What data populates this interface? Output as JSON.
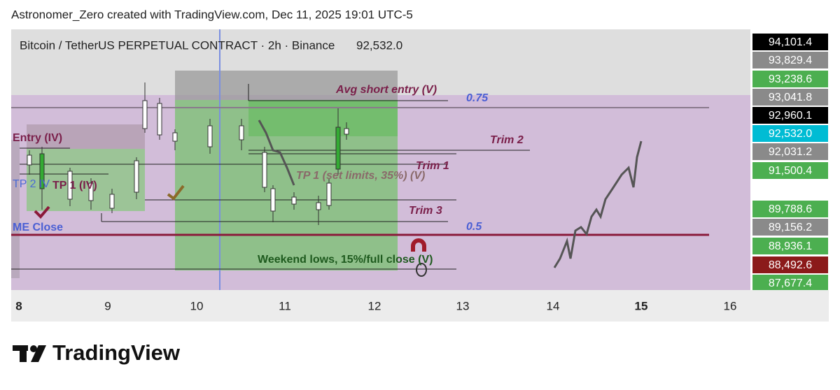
{
  "header": {
    "credit": "Astronomer_Zero created with TradingView.com, Dec 11, 2025 19:01 UTC-5"
  },
  "chart": {
    "symbol": "Bitcoin / TetherUS PERPETUAL CONTRACT · 2h · Binance",
    "last_price": "92,532.0",
    "annotations": {
      "avg_short_entry": "Avg short entry (V)",
      "fib_075": "0.75",
      "trim2": "Trim 2",
      "trim1": "Trim 1",
      "tp1_set": "TP 1 (set limits, 35%) (V)",
      "trim3": "Trim 3",
      "fib_05": "0.5",
      "weekend_lows": "Weekend lows, 15%/full close (V)",
      "entry_iv": "Entry (IV)",
      "tp1_iv": "TP 1 (IV)",
      "tp2_iv": "TP 2 IV",
      "me_close": "ME Close"
    },
    "price_labels": [
      {
        "text": "94,101.4",
        "color": "#000000"
      },
      {
        "text": "93,829.4",
        "color": "#8a8a8a"
      },
      {
        "text": "93,238.6",
        "color": "#4caf50"
      },
      {
        "text": "93,041.8",
        "color": "#8a8a8a"
      },
      {
        "text": "92,960.1",
        "color": "#000000"
      },
      {
        "text": "92,532.0",
        "color": "#00bcd4"
      },
      {
        "text": "92,031.2",
        "color": "#8a8a8a"
      },
      {
        "text": "91,500.4",
        "color": "#4caf50"
      },
      {
        "text": "89,788.6",
        "color": "#4caf50"
      },
      {
        "text": "89,156.2",
        "color": "#8a8a8a"
      },
      {
        "text": "88,936.1",
        "color": "#4caf50"
      },
      {
        "text": "88,492.6",
        "color": "#8b1a1a"
      },
      {
        "text": "87,677.4",
        "color": "#4caf50"
      }
    ],
    "time_labels": [
      "8",
      "9",
      "10",
      "11",
      "12",
      "13",
      "14",
      "15",
      "16"
    ]
  },
  "footer": {
    "brand": "TradingView"
  }
}
